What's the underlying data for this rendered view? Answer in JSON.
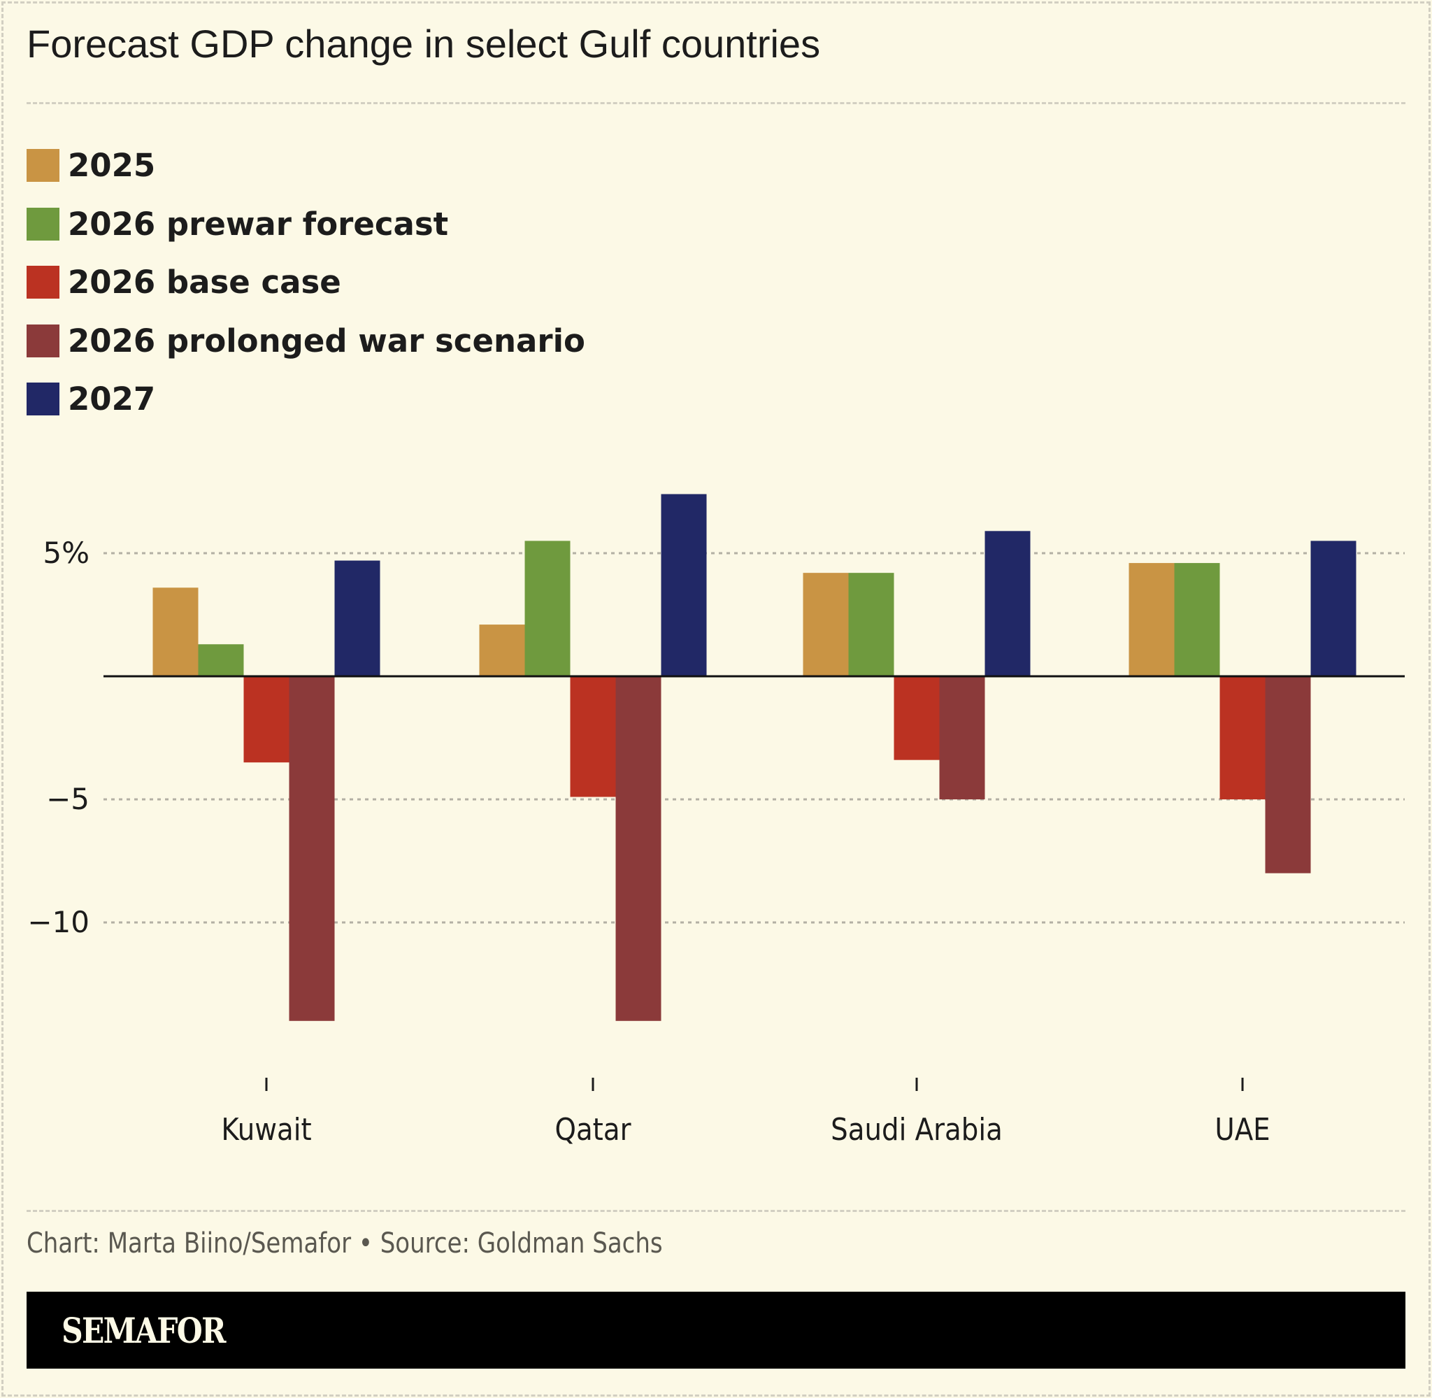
{
  "chart_data": {
    "type": "bar",
    "title": "Forecast GDP change in select Gulf countries",
    "categories": [
      "Kuwait",
      "Qatar",
      "Saudi Arabia",
      "UAE"
    ],
    "series": [
      {
        "name": "2025",
        "color": "#c99444",
        "values": [
          3.6,
          2.1,
          4.2,
          4.6
        ]
      },
      {
        "name": "2026 prewar forecast",
        "color": "#6f9a3e",
        "values": [
          1.3,
          5.5,
          4.2,
          4.6
        ]
      },
      {
        "name": "2026 base case",
        "color": "#bb3222",
        "values": [
          -3.5,
          -4.9,
          -3.4,
          -5.0
        ]
      },
      {
        "name": "2026 prolonged war scenario",
        "color": "#8b3a3a",
        "values": [
          -14.0,
          -14.0,
          -5.0,
          -8.0
        ]
      },
      {
        "name": "2027",
        "color": "#212866",
        "values": [
          4.7,
          7.4,
          5.9,
          5.5
        ]
      }
    ],
    "yticks": [
      5,
      -5,
      -10
    ],
    "ytick_labels": [
      "5%",
      "−5",
      "−10"
    ],
    "ylim": [
      -16,
      8.5
    ],
    "grid": true,
    "legend": "top-left"
  },
  "footer": {
    "credit": "Chart: Marta Biino/Semafor • Source: Goldman Sachs",
    "brand": "SEMAFOR"
  }
}
